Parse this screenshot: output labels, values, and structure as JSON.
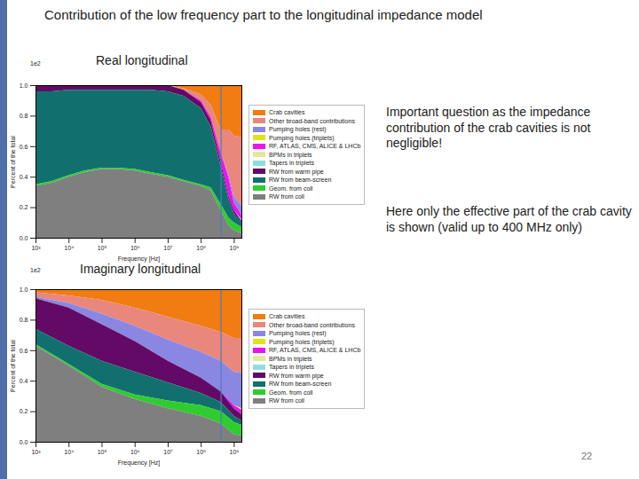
{
  "title": "Contribution of the low frequency part to the longitudinal impedance model",
  "notes": [
    "Important question as the impedance contribution of the crab cavities is not negligible!",
    "Here only the effective part of the crab cavity is shown (valid up to 400 MHz only)"
  ],
  "page_number": "22",
  "chart_data": [
    {
      "type": "area",
      "title": "Real longitudinal",
      "x_label": "Frequency [Hz]",
      "y_label": "Percent of the total",
      "annotations": [
        {
          "text": "1e2"
        }
      ],
      "reference_line": {
        "x": 400000000
      },
      "log": "x",
      "stacked": true,
      "grid": false,
      "legend": "right",
      "xlim": [
        1000,
        1700000000
      ],
      "xticks": [
        {
          "value": 1000,
          "label": "10³"
        },
        {
          "value": 10000,
          "label": "10⁴"
        },
        {
          "value": 100000,
          "label": "10⁵"
        },
        {
          "value": 1000000,
          "label": "10⁶"
        },
        {
          "value": 10000000,
          "label": "10⁷"
        },
        {
          "value": 100000000,
          "label": "10⁸"
        },
        {
          "value": 1000000000,
          "label": "10⁹"
        }
      ],
      "ylim": [
        0,
        1
      ],
      "yticks": [
        {
          "value": 0,
          "label": "0.0"
        },
        {
          "value": 0.2,
          "label": "0.2"
        },
        {
          "value": 0.4,
          "label": "0.4"
        },
        {
          "value": 0.6,
          "label": "0.6"
        },
        {
          "value": 0.8,
          "label": "0.8"
        },
        {
          "value": 1,
          "label": "1.0"
        }
      ],
      "x": [
        1000,
        3000,
        10000,
        30000,
        100000,
        300000,
        1000000,
        3000000,
        10000000,
        30000000,
        100000000,
        200000000,
        400000000,
        700000000,
        1000000000,
        1700000000
      ],
      "series": [
        {
          "name": "Crab cavities",
          "color": "#f07c12",
          "values": [
            0,
            0,
            0,
            0,
            0,
            0,
            0,
            0,
            0,
            0.02,
            0.06,
            0.13,
            0.29,
            0.29,
            0.33,
            0.34
          ]
        },
        {
          "name": "Other broad-band contributions",
          "color": "#e9877c",
          "values": [
            0,
            0,
            0,
            0,
            0,
            0,
            0,
            0,
            0,
            0.01,
            0.04,
            0.08,
            0.15,
            0.3,
            0.4,
            0.45
          ]
        },
        {
          "name": "Pumping holes (rest)",
          "color": "#8a87e3",
          "values": [
            0,
            0,
            0,
            0,
            0,
            0,
            0,
            0,
            0,
            0,
            0,
            0,
            0,
            0.02,
            0.04,
            0.06
          ]
        },
        {
          "name": "Pumping holes (triplets)",
          "color": "#e2e21a",
          "values": [
            0,
            0,
            0,
            0,
            0,
            0,
            0,
            0,
            0,
            0,
            0,
            0,
            0,
            0,
            0,
            0
          ]
        },
        {
          "name": "RF, ATLAS, CMS, ALICE & LHCb",
          "color": "#ee10ee",
          "values": [
            0,
            0,
            0,
            0,
            0,
            0,
            0,
            0,
            0,
            0,
            0.01,
            0.02,
            0.06,
            0.12,
            0.05,
            0.03
          ]
        },
        {
          "name": "BPMs in triplets",
          "color": "#e3e89a",
          "values": [
            0,
            0,
            0,
            0,
            0,
            0,
            0,
            0,
            0,
            0,
            0,
            0,
            0,
            0,
            0,
            0
          ]
        },
        {
          "name": "Tapers in triplets",
          "color": "#8fdede",
          "values": [
            0,
            0,
            0,
            0,
            0,
            0,
            0,
            0,
            0,
            0,
            0,
            0,
            0,
            0,
            0,
            0.01
          ]
        },
        {
          "name": "RW from warm pipe",
          "color": "#620a66",
          "values": [
            0.04,
            0.04,
            0.03,
            0.03,
            0.03,
            0.03,
            0.03,
            0.03,
            0.04,
            0.04,
            0.04,
            0.04,
            0.03,
            0.02,
            0.02,
            0.01
          ]
        },
        {
          "name": "RW from beam-screen",
          "color": "#11706d",
          "values": [
            0.61,
            0.59,
            0.56,
            0.53,
            0.51,
            0.51,
            0.52,
            0.54,
            0.55,
            0.55,
            0.5,
            0.4,
            0.25,
            0.12,
            0.06,
            0.03
          ]
        },
        {
          "name": "Geom. from coll",
          "color": "#2fcc2f",
          "values": [
            0.01,
            0.01,
            0.01,
            0.01,
            0.01,
            0.01,
            0.01,
            0.01,
            0.01,
            0.01,
            0.01,
            0.02,
            0.04,
            0.05,
            0.05,
            0.04
          ]
        },
        {
          "name": "RW from coll",
          "color": "#7f7f7f",
          "values": [
            0.34,
            0.36,
            0.4,
            0.43,
            0.45,
            0.45,
            0.44,
            0.42,
            0.4,
            0.37,
            0.34,
            0.31,
            0.18,
            0.08,
            0.05,
            0.03
          ]
        }
      ]
    },
    {
      "type": "area",
      "title": "Imaginary longitudinal",
      "x_label": "Frequency [Hz]",
      "y_label": "Percent of the total",
      "annotations": [
        {
          "text": "1e2"
        }
      ],
      "reference_line": {
        "x": 400000000
      },
      "log": "x",
      "stacked": true,
      "grid": false,
      "legend": "right",
      "xlim": [
        1000,
        1700000000
      ],
      "xticks": [
        {
          "value": 1000,
          "label": "10³"
        },
        {
          "value": 10000,
          "label": "10⁴"
        },
        {
          "value": 100000,
          "label": "10⁵"
        },
        {
          "value": 1000000,
          "label": "10⁶"
        },
        {
          "value": 10000000,
          "label": "10⁷"
        },
        {
          "value": 100000000,
          "label": "10⁸"
        },
        {
          "value": 1000000000,
          "label": "10⁹"
        }
      ],
      "ylim": [
        0,
        1
      ],
      "yticks": [
        {
          "value": 0,
          "label": "0.0"
        },
        {
          "value": 0.2,
          "label": "0.2"
        },
        {
          "value": 0.4,
          "label": "0.4"
        },
        {
          "value": 0.6,
          "label": "0.6"
        },
        {
          "value": 0.8,
          "label": "0.8"
        },
        {
          "value": 1,
          "label": "1.0"
        }
      ],
      "x": [
        1000,
        10000,
        100000,
        1000000,
        10000000,
        100000000,
        400000000,
        1000000000,
        1700000000
      ],
      "series": [
        {
          "name": "Crab cavities",
          "color": "#f07c12",
          "values": [
            0.02,
            0.04,
            0.07,
            0.12,
            0.18,
            0.24,
            0.28,
            0.32,
            0.32
          ]
        },
        {
          "name": "Other broad-band contributions",
          "color": "#e9877c",
          "values": [
            0.03,
            0.05,
            0.09,
            0.12,
            0.15,
            0.17,
            0.19,
            0.22,
            0.23
          ]
        },
        {
          "name": "Pumping holes (rest)",
          "color": "#8a87e3",
          "values": [
            0.01,
            0.03,
            0.07,
            0.1,
            0.14,
            0.17,
            0.2,
            0.22,
            0.23
          ]
        },
        {
          "name": "Pumping holes (triplets)",
          "color": "#e2e21a",
          "values": [
            0,
            0,
            0,
            0,
            0,
            0,
            0,
            0,
            0.01
          ]
        },
        {
          "name": "RF, ATLAS, CMS, ALICE & LHCb",
          "color": "#ee10ee",
          "values": [
            0,
            0,
            0,
            0,
            0,
            0,
            0,
            0.02,
            0.03
          ]
        },
        {
          "name": "BPMs in triplets",
          "color": "#e3e89a",
          "values": [
            0,
            0,
            0,
            0,
            0,
            0,
            0,
            0,
            0
          ]
        },
        {
          "name": "Tapers in triplets",
          "color": "#8fdede",
          "values": [
            0,
            0,
            0,
            0,
            0,
            0,
            0,
            0,
            0
          ]
        },
        {
          "name": "RW from warm pipe",
          "color": "#620a66",
          "values": [
            0.2,
            0.25,
            0.24,
            0.2,
            0.14,
            0.1,
            0.07,
            0.05,
            0.04
          ]
        },
        {
          "name": "RW from beam-screen",
          "color": "#11706d",
          "values": [
            0.1,
            0.12,
            0.15,
            0.15,
            0.12,
            0.08,
            0.06,
            0.04,
            0.03
          ]
        },
        {
          "name": "Geom. from coll",
          "color": "#2fcc2f",
          "values": [
            0.01,
            0.01,
            0.02,
            0.03,
            0.05,
            0.07,
            0.08,
            0.08,
            0.07
          ]
        },
        {
          "name": "RW from coll",
          "color": "#7f7f7f",
          "values": [
            0.63,
            0.5,
            0.36,
            0.28,
            0.22,
            0.17,
            0.12,
            0.05,
            0.04
          ]
        }
      ]
    }
  ]
}
